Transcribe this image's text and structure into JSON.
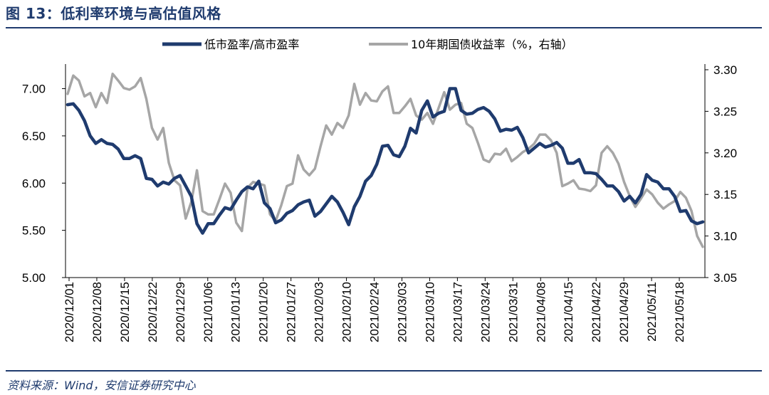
{
  "figure": {
    "title": "图 13：低利率环境与高估值风格",
    "source": "资料来源：Wind，安信证券研究中心"
  },
  "colors": {
    "accent": "#1f3b6e",
    "series_pe": "#1f3b6e",
    "series_yield": "#a6a6a6"
  },
  "chart_data": {
    "type": "line",
    "title": "",
    "xlabel": "",
    "ylabel": "",
    "legend_position": "top",
    "grid": false,
    "x_tick_labels": [
      "2020/12/01",
      "2020/12/08",
      "2020/12/15",
      "2020/12/22",
      "2020/12/29",
      "2021/01/06",
      "2021/01/13",
      "2021/01/20",
      "2021/01/27",
      "2021/02/03",
      "2021/02/10",
      "2021/02/24",
      "2021/03/03",
      "2021/03/10",
      "2021/03/17",
      "2021/03/24",
      "2021/03/31",
      "2021/04/08",
      "2021/04/15",
      "2021/04/22",
      "2021/04/29",
      "2021/05/11",
      "2021/05/18"
    ],
    "y_left": {
      "ticks": [
        "5.00",
        "5.50",
        "6.00",
        "6.50",
        "7.00"
      ],
      "lim": [
        5.0,
        7.2
      ]
    },
    "y_right": {
      "ticks": [
        "3.05",
        "3.10",
        "3.15",
        "3.20",
        "3.25",
        "3.30"
      ],
      "lim": [
        3.05,
        3.3
      ]
    },
    "series": [
      {
        "name": "低市盈率/高市盈率",
        "axis": "left",
        "values": [
          6.83,
          6.84,
          6.77,
          6.66,
          6.5,
          6.42,
          6.46,
          6.42,
          6.41,
          6.36,
          6.26,
          6.26,
          6.29,
          6.26,
          6.05,
          6.04,
          5.97,
          6.01,
          5.99,
          6.05,
          6.08,
          5.97,
          5.86,
          5.57,
          5.47,
          5.57,
          5.57,
          5.66,
          5.74,
          5.72,
          5.82,
          5.91,
          5.96,
          5.94,
          6.02,
          5.79,
          5.73,
          5.58,
          5.61,
          5.68,
          5.71,
          5.77,
          5.8,
          5.82,
          5.65,
          5.7,
          5.78,
          5.86,
          5.8,
          5.69,
          5.56,
          5.75,
          5.86,
          6.02,
          6.08,
          6.2,
          6.39,
          6.4,
          6.3,
          6.28,
          6.39,
          6.58,
          6.53,
          6.77,
          6.87,
          6.7,
          6.74,
          6.76,
          7.0,
          7.0,
          6.77,
          6.73,
          6.74,
          6.78,
          6.8,
          6.76,
          6.68,
          6.55,
          6.57,
          6.56,
          6.59,
          6.48,
          6.32,
          6.37,
          6.42,
          6.38,
          6.4,
          6.43,
          6.37,
          6.21,
          6.21,
          6.25,
          6.11,
          6.11,
          6.1,
          6.04,
          5.97,
          5.97,
          5.91,
          5.81,
          5.86,
          5.79,
          5.88,
          6.09,
          6.03,
          6.01,
          5.94,
          5.94,
          5.86,
          5.7,
          5.71,
          5.6,
          5.57,
          5.59
        ]
      },
      {
        "name": "10年期国债收益率（%，右轴）",
        "axis": "right",
        "values": [
          3.271,
          3.293,
          3.287,
          3.268,
          3.272,
          3.255,
          3.272,
          3.26,
          3.295,
          3.287,
          3.278,
          3.276,
          3.28,
          3.29,
          3.265,
          3.23,
          3.216,
          3.23,
          3.188,
          3.167,
          3.161,
          3.121,
          3.141,
          3.179,
          3.13,
          3.126,
          3.126,
          3.144,
          3.163,
          3.152,
          3.116,
          3.106,
          3.158,
          3.165,
          3.163,
          3.161,
          3.126,
          3.118,
          3.137,
          3.16,
          3.163,
          3.197,
          3.18,
          3.173,
          3.181,
          3.208,
          3.233,
          3.222,
          3.236,
          3.23,
          3.245,
          3.283,
          3.258,
          3.272,
          3.263,
          3.262,
          3.274,
          3.28,
          3.248,
          3.248,
          3.256,
          3.265,
          3.245,
          3.24,
          3.248,
          3.235,
          3.254,
          3.273,
          3.252,
          3.258,
          3.26,
          3.235,
          3.23,
          3.212,
          3.192,
          3.189,
          3.199,
          3.198,
          3.205,
          3.19,
          3.195,
          3.201,
          3.205,
          3.211,
          3.222,
          3.222,
          3.215,
          3.2,
          3.16,
          3.163,
          3.167,
          3.157,
          3.156,
          3.154,
          3.161,
          3.2,
          3.208,
          3.2,
          3.187,
          3.165,
          3.148,
          3.135,
          3.145,
          3.156,
          3.15,
          3.14,
          3.133,
          3.138,
          3.142,
          3.153,
          3.146,
          3.13,
          3.1,
          3.087
        ]
      }
    ]
  }
}
